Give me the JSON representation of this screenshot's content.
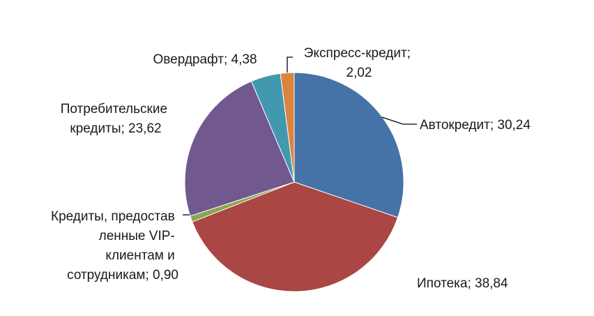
{
  "chart_data": {
    "type": "pie",
    "title": "",
    "slices": [
      {
        "label": "Автокредит",
        "value": 30.24,
        "value_text": "30,24",
        "color": "#4572A7"
      },
      {
        "label": "Ипотека",
        "value": 38.84,
        "value_text": "38,84",
        "color": "#AA4643"
      },
      {
        "label": "Кредиты, предоставленные VIP-клиентам и сотрудникам",
        "value": 0.9,
        "value_text": "0,90",
        "color": "#89A54E"
      },
      {
        "label": "Потребительские кредиты",
        "value": 23.62,
        "value_text": "23,62",
        "color": "#71588F"
      },
      {
        "label": "Овердрафт",
        "value": 4.38,
        "value_text": "4,38",
        "color": "#4198AF"
      },
      {
        "label": "Экспресс-кредит",
        "value": 2.02,
        "value_text": "2,02",
        "color": "#DB843D"
      }
    ],
    "data_labels": {
      "avtokredit": [
        "Автокредит; 30,24"
      ],
      "ipoteka": [
        "Ипотека; 38,84"
      ],
      "vip": [
        "Кредиты, предостав",
        "ленные VIP-",
        "клиентам и",
        "сотрудникам; 0,90"
      ],
      "potreb": [
        "Потребительские",
        "кредиты; 23,62"
      ],
      "overdraft": [
        "Овердрафт; 4,38"
      ],
      "express": [
        "Экспресс-кредит;",
        "2,02"
      ]
    }
  }
}
